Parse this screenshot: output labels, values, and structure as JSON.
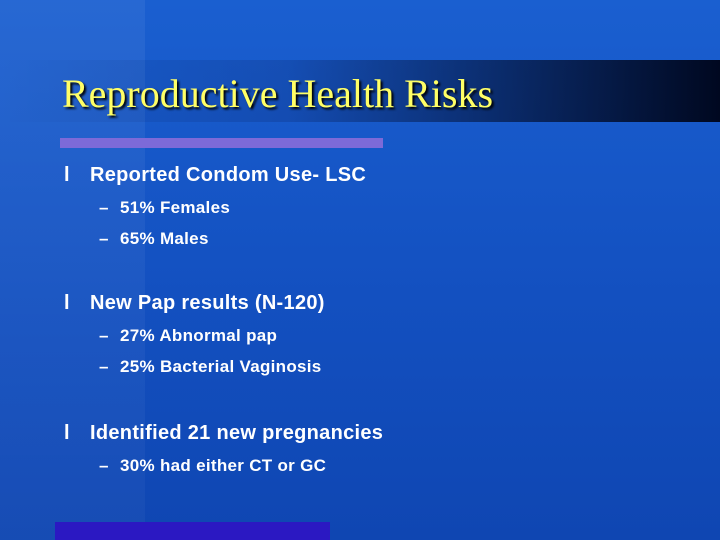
{
  "header": {
    "title": "Reproductive Health Risks"
  },
  "items": [
    {
      "bullet": "l",
      "text": "Reported Condom Use- LSC",
      "subitems": [
        {
          "dash": "–",
          "text": "51% Females"
        },
        {
          "dash": "–",
          "text": "65% Males"
        }
      ]
    },
    {
      "bullet": "l",
      "text": "New Pap results (N-120)",
      "subitems": [
        {
          "dash": "–",
          "text": "27% Abnormal pap"
        },
        {
          "dash": "–",
          "text": "25% Bacterial Vaginosis"
        }
      ]
    },
    {
      "bullet": "l",
      "text": "Identified 21 new pregnancies",
      "subitems": [
        {
          "dash": "–",
          "text": "30% had either CT or GC"
        }
      ]
    }
  ]
}
